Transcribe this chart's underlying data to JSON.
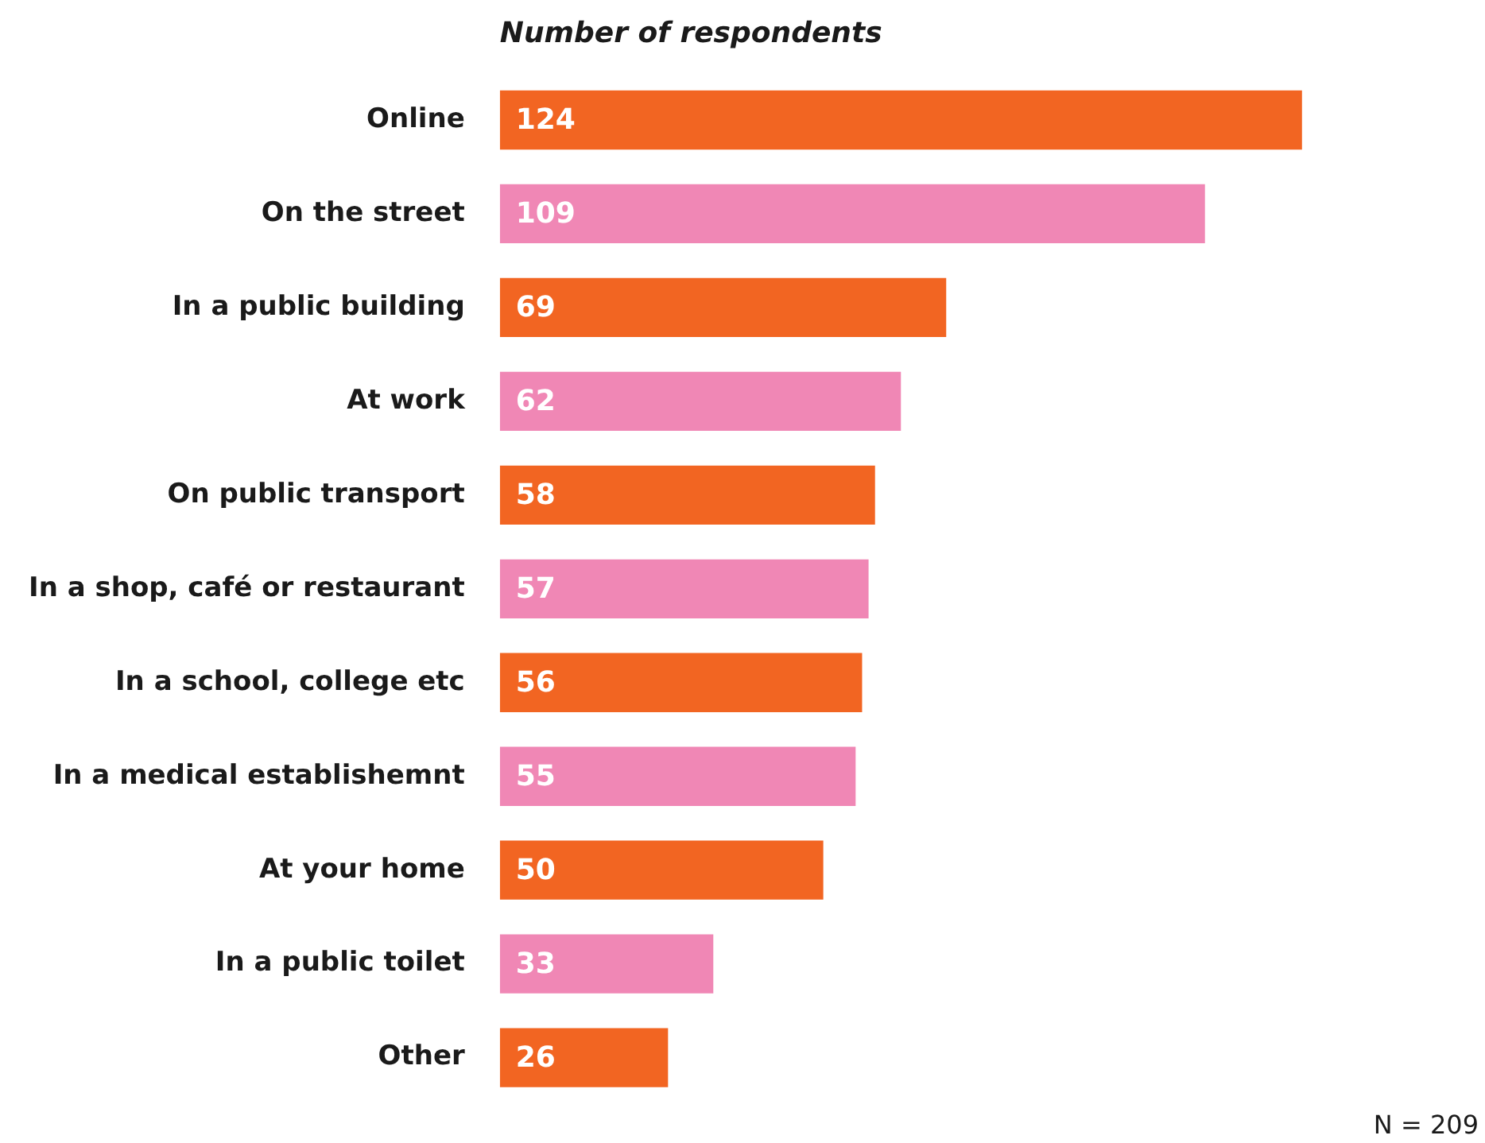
{
  "chart_data": {
    "type": "bar",
    "orientation": "horizontal",
    "title": "Number of respondents",
    "categories": [
      "Online",
      "On the street",
      "In a public building",
      "At work",
      "On public transport",
      "In a shop, café or restaurant",
      "In a school, college etc",
      "In a medical establishemnt",
      "At your home",
      "In a public toilet",
      "Other"
    ],
    "values": [
      124,
      109,
      69,
      62,
      58,
      57,
      56,
      55,
      50,
      33,
      26
    ],
    "colors": [
      "#f26522",
      "#f087b5",
      "#f26522",
      "#f087b5",
      "#f26522",
      "#f087b5",
      "#f26522",
      "#f087b5",
      "#f26522",
      "#f087b5",
      "#f26522"
    ],
    "data_labels": true,
    "annotations": [
      "N = 209"
    ]
  }
}
